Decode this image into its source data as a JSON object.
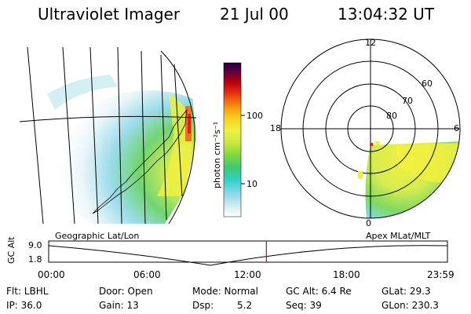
{
  "header": {
    "instrument": "Ultraviolet Imager",
    "date": "21 Jul 00",
    "time": "13:04:32 UT"
  },
  "colorbar": {
    "unit_label": "photon cm⁻²s⁻¹",
    "ticks": [
      "100",
      "10"
    ],
    "colors": [
      "#ffffff",
      "#c8e8f0",
      "#7fd8e8",
      "#30d0c8",
      "#40c870",
      "#80d840",
      "#c8e840",
      "#f0f040",
      "#f8d020",
      "#f8a010",
      "#f06010",
      "#e02010",
      "#b00010",
      "#600040",
      "#200040"
    ]
  },
  "polar_plot": {
    "mlt_labels": [
      "12",
      "18",
      "6",
      "0"
    ],
    "lat_labels": [
      "60",
      "70",
      "80"
    ]
  },
  "panel_labels": {
    "left": "Geographic Lat/Lon",
    "right": "Apex MLat/MLT"
  },
  "timeline": {
    "axis_label": "GC Alt",
    "y_ticks": [
      "9.0",
      "1.8"
    ],
    "x_ticks": [
      "00:00",
      "06:00",
      "12:00",
      "18:00",
      "23:59"
    ],
    "current_time_fraction": 0.546,
    "marker_color": "#e00000"
  },
  "info": {
    "flt": "Flt: LBHL",
    "ip": "IP: 36.0",
    "door": "Door: Open",
    "gain": "Gain: 13",
    "mode": "Mode: Normal",
    "dsp_label": "Dsp:",
    "dsp_value": "5.2",
    "gcalt": "GC Alt: 6.4 Re",
    "seq": "Seq: 39",
    "glat": "GLat: 29.3",
    "glon": "GLon: 230.3"
  }
}
